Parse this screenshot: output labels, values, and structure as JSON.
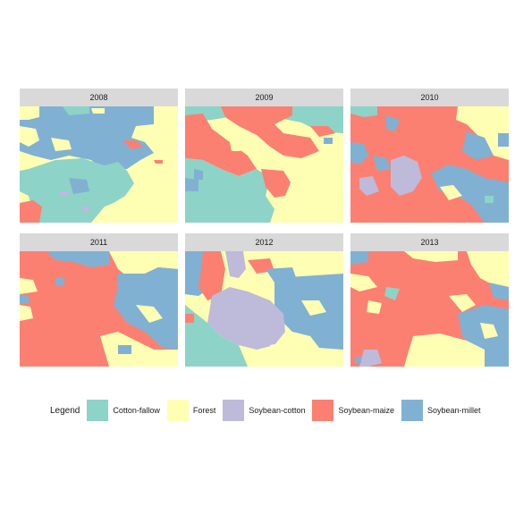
{
  "years": [
    "2008",
    "2009",
    "2010",
    "2011",
    "2012",
    "2013"
  ],
  "legend": {
    "title": "Legend",
    "classes": [
      {
        "key": "cotton_fallow",
        "label": "Cotton-fallow",
        "color": "#8dd3c7"
      },
      {
        "key": "forest",
        "label": "Forest",
        "color": "#ffffb3"
      },
      {
        "key": "soybean_cotton",
        "label": "Soybean-cotton",
        "color": "#bebada"
      },
      {
        "key": "soybean_maize",
        "label": "Soybean-maize",
        "color": "#fb8072"
      },
      {
        "key": "soybean_millet",
        "label": "Soybean-millet",
        "color": "#80b1d3"
      }
    ]
  },
  "map_summary": {
    "2008": {
      "dominant": [
        "Soybean-millet",
        "Forest",
        "Cotton-fallow"
      ]
    },
    "2009": {
      "dominant": [
        "Soybean-maize",
        "Cotton-fallow",
        "Forest"
      ]
    },
    "2010": {
      "dominant": [
        "Soybean-maize",
        "Soybean-millet",
        "Soybean-cotton"
      ]
    },
    "2011": {
      "dominant": [
        "Soybean-maize",
        "Soybean-millet",
        "Forest"
      ]
    },
    "2012": {
      "dominant": [
        "Soybean-cotton",
        "Soybean-millet",
        "Soybean-maize"
      ]
    },
    "2013": {
      "dominant": [
        "Soybean-maize",
        "Soybean-millet",
        "Forest"
      ]
    }
  }
}
